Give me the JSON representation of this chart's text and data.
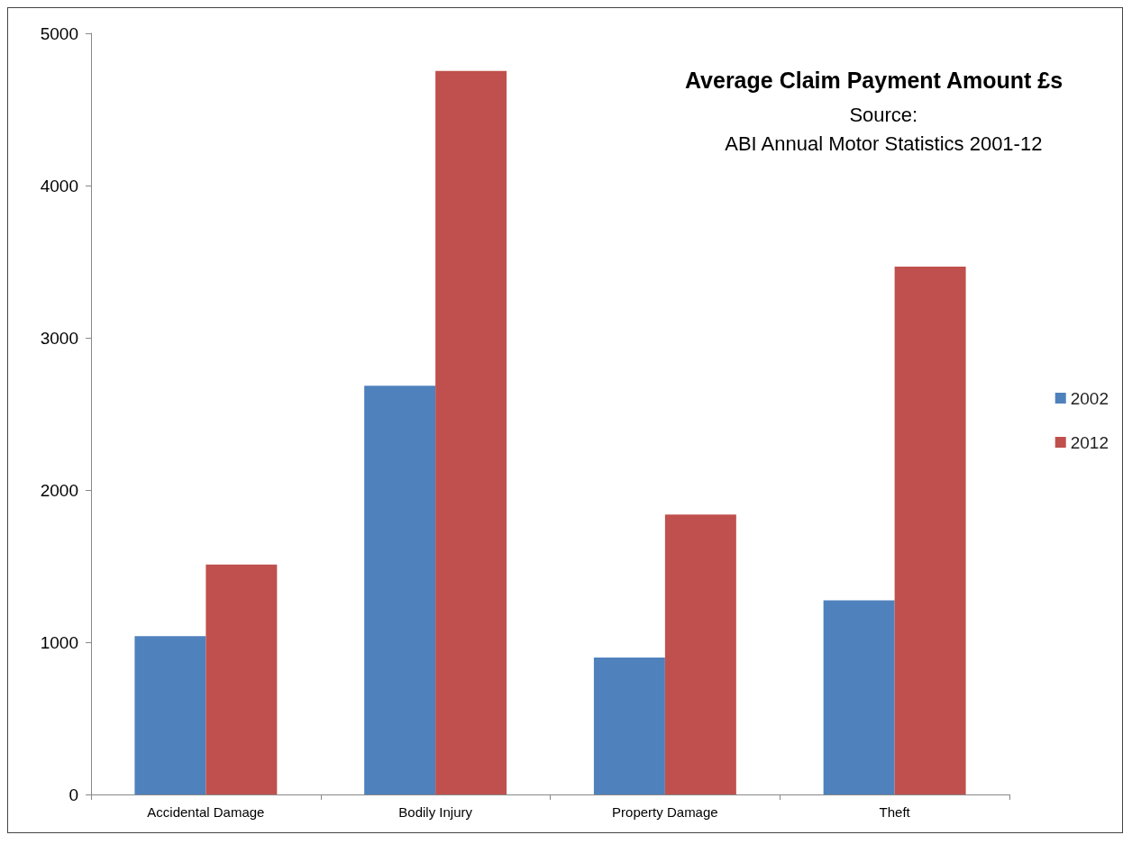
{
  "chart_data": {
    "type": "bar",
    "title": "Average Claim Payment Amount £s",
    "annotations": [
      "Source:\nABI Annual Motor Statistics 2001-12"
    ],
    "categories": [
      "Accidental Damage",
      "Bodily Injury",
      "Property Damage",
      "Theft"
    ],
    "series": [
      {
        "name": "2002",
        "color": "#4f81bd",
        "values": [
          1040,
          2685,
          899,
          1275
        ]
      },
      {
        "name": "2012",
        "color": "#c0504d",
        "values": [
          1510,
          4753,
          1839,
          3467
        ]
      }
    ],
    "ylim": [
      0,
      5000
    ],
    "yticks": [
      0,
      1000,
      2000,
      3000,
      4000,
      5000
    ],
    "grid": false,
    "legend": "right"
  }
}
